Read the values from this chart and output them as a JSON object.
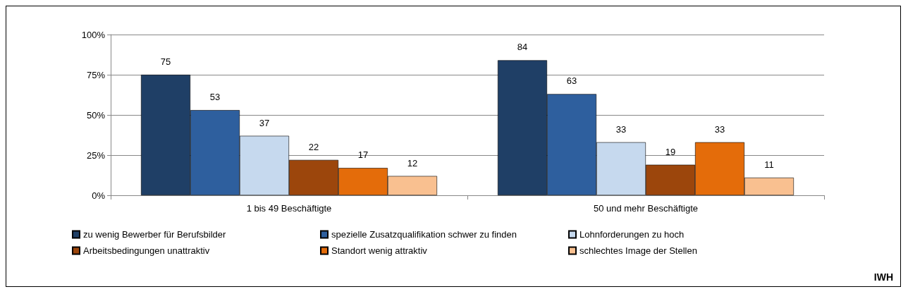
{
  "chart_data": {
    "type": "bar",
    "categories": [
      "1 bis 49 Beschäftigte",
      "50 und mehr Beschäftigte"
    ],
    "series": [
      {
        "name": "zu wenig Bewerber für Berufsbilder",
        "color": "#1f3f66",
        "values": [
          75,
          84
        ]
      },
      {
        "name": "spezielle Zusatzqualifikation schwer zu finden",
        "color": "#2e5f9e",
        "values": [
          53,
          63
        ]
      },
      {
        "name": "Lohnforderungen zu hoch",
        "color": "#c6d9ee",
        "values": [
          37,
          33
        ]
      },
      {
        "name": "Arbeitsbedingungen unattraktiv",
        "color": "#9c460c",
        "values": [
          22,
          19
        ]
      },
      {
        "name": "Standort wenig attraktiv",
        "color": "#e46c0a",
        "values": [
          17,
          33
        ]
      },
      {
        "name": "schlechtes Image der Stellen",
        "color": "#f9c090",
        "values": [
          12,
          11
        ]
      }
    ],
    "ylim": [
      0,
      100
    ],
    "yticks": [
      {
        "value": 0,
        "label": "0%"
      },
      {
        "value": 25,
        "label": "25%"
      },
      {
        "value": 50,
        "label": "50%"
      },
      {
        "value": 75,
        "label": "75%"
      },
      {
        "value": 100,
        "label": "100%"
      }
    ],
    "grid": "y",
    "legend": "bottom",
    "data_labels": true,
    "annotations": [
      "IWH"
    ]
  }
}
